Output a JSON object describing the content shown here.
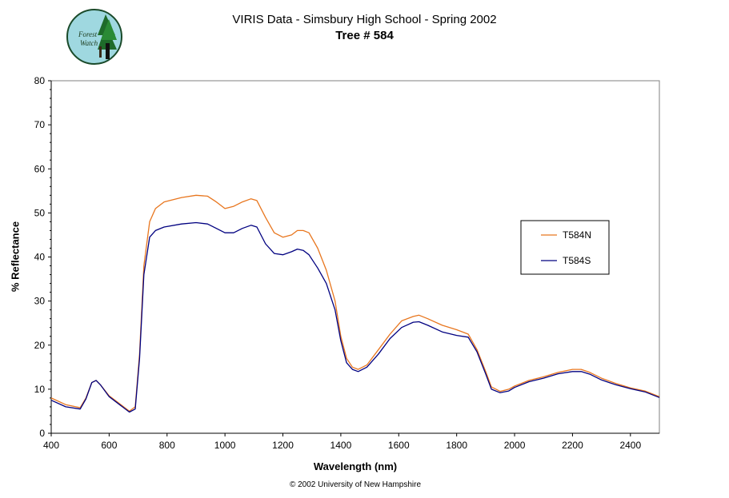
{
  "chart_data": {
    "type": "line",
    "title": "VIRIS Data - Simsbury High School - Spring 2002",
    "subtitle": "Tree # 584",
    "xlabel": "Wavelength (nm)",
    "ylabel": "% Reflectance",
    "xlim": [
      400,
      2500
    ],
    "ylim": [
      0,
      80
    ],
    "xticks": [
      400,
      600,
      800,
      1000,
      1200,
      1400,
      1600,
      1800,
      2000,
      2200,
      2400
    ],
    "yticks": [
      0,
      10,
      20,
      30,
      40,
      50,
      60,
      70,
      80
    ],
    "grid": false,
    "legend_position": "right",
    "series": [
      {
        "name": "T584N",
        "color": "#e8761e",
        "x": [
          400,
          450,
          500,
          520,
          540,
          555,
          570,
          600,
          640,
          670,
          690,
          705,
          720,
          740,
          760,
          790,
          850,
          900,
          940,
          970,
          1000,
          1030,
          1060,
          1090,
          1110,
          1140,
          1170,
          1200,
          1230,
          1250,
          1270,
          1290,
          1320,
          1350,
          1380,
          1400,
          1420,
          1440,
          1460,
          1490,
          1530,
          1570,
          1610,
          1650,
          1670,
          1700,
          1750,
          1800,
          1840,
          1870,
          1900,
          1920,
          1950,
          1980,
          2000,
          2050,
          2100,
          2150,
          2200,
          2230,
          2260,
          2300,
          2350,
          2400,
          2450,
          2500
        ],
        "y": [
          8,
          6.5,
          5.8,
          8,
          11.5,
          12,
          11,
          8.5,
          6.5,
          5,
          6,
          18,
          38,
          48,
          51,
          52.5,
          53.5,
          54,
          53.8,
          52.5,
          51,
          51.5,
          52.5,
          53.2,
          52.8,
          49,
          45.5,
          44.5,
          45,
          46,
          46,
          45.5,
          42,
          37,
          30,
          22,
          17,
          15,
          14.5,
          15.5,
          19,
          22.5,
          25.5,
          26.5,
          26.8,
          26,
          24.5,
          23.5,
          22.5,
          19,
          14,
          10.5,
          9.5,
          10,
          10.7,
          12,
          12.8,
          13.8,
          14.5,
          14.5,
          13.8,
          12.5,
          11.3,
          10.3,
          9.6,
          8.3
        ]
      },
      {
        "name": "T584S",
        "color": "#000080",
        "x": [
          400,
          450,
          500,
          520,
          540,
          555,
          570,
          600,
          640,
          670,
          690,
          705,
          720,
          740,
          760,
          790,
          850,
          900,
          940,
          970,
          1000,
          1030,
          1060,
          1090,
          1110,
          1140,
          1170,
          1200,
          1230,
          1250,
          1270,
          1290,
          1320,
          1350,
          1380,
          1400,
          1420,
          1440,
          1460,
          1490,
          1530,
          1570,
          1610,
          1650,
          1670,
          1700,
          1750,
          1800,
          1840,
          1870,
          1900,
          1920,
          1950,
          1980,
          2000,
          2050,
          2100,
          2150,
          2200,
          2230,
          2260,
          2300,
          2350,
          2400,
          2450,
          2500
        ],
        "y": [
          7.5,
          6,
          5.5,
          7.8,
          11.5,
          12,
          11,
          8.3,
          6.3,
          4.8,
          5.5,
          17,
          36,
          44.5,
          46,
          46.8,
          47.5,
          47.8,
          47.5,
          46.5,
          45.5,
          45.5,
          46.5,
          47.2,
          46.8,
          43,
          40.8,
          40.5,
          41.2,
          41.8,
          41.5,
          40.5,
          37.5,
          34,
          28,
          21,
          16,
          14.5,
          14,
          15,
          18,
          21.5,
          24,
          25.2,
          25.3,
          24.5,
          23,
          22.2,
          21.8,
          18.5,
          13.5,
          10,
          9.2,
          9.6,
          10.4,
          11.7,
          12.5,
          13.5,
          14,
          14,
          13.4,
          12.1,
          11,
          10.1,
          9.4,
          8.1
        ]
      }
    ]
  },
  "logo": {
    "text_line1": "Forest",
    "text_line2": "Watch"
  },
  "footer": "© 2002 University of New Hampshire"
}
